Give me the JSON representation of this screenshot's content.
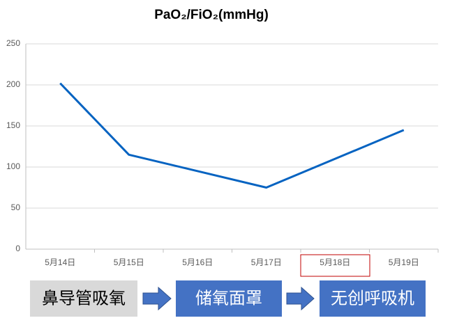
{
  "chart_data": {
    "type": "line",
    "title": "PaO₂/FiO₂(mmHg)",
    "categories": [
      "5月14日",
      "5月15日",
      "5月16日",
      "5月17日",
      "5月18日",
      "5月19日"
    ],
    "series": [
      {
        "color": "#0563c1",
        "x": [
          "5月14日",
          "5月15日",
          "5月17日",
          "5月19日"
        ],
        "values": [
          202,
          115,
          75,
          145
        ]
      }
    ],
    "ylim": [
      0,
      250
    ],
    "yticks": [
      0,
      50,
      100,
      150,
      200,
      250
    ],
    "grid": true,
    "stages": [
      "鼻导管吸氧",
      "储氧面罩",
      "无创呼吸机"
    ]
  }
}
